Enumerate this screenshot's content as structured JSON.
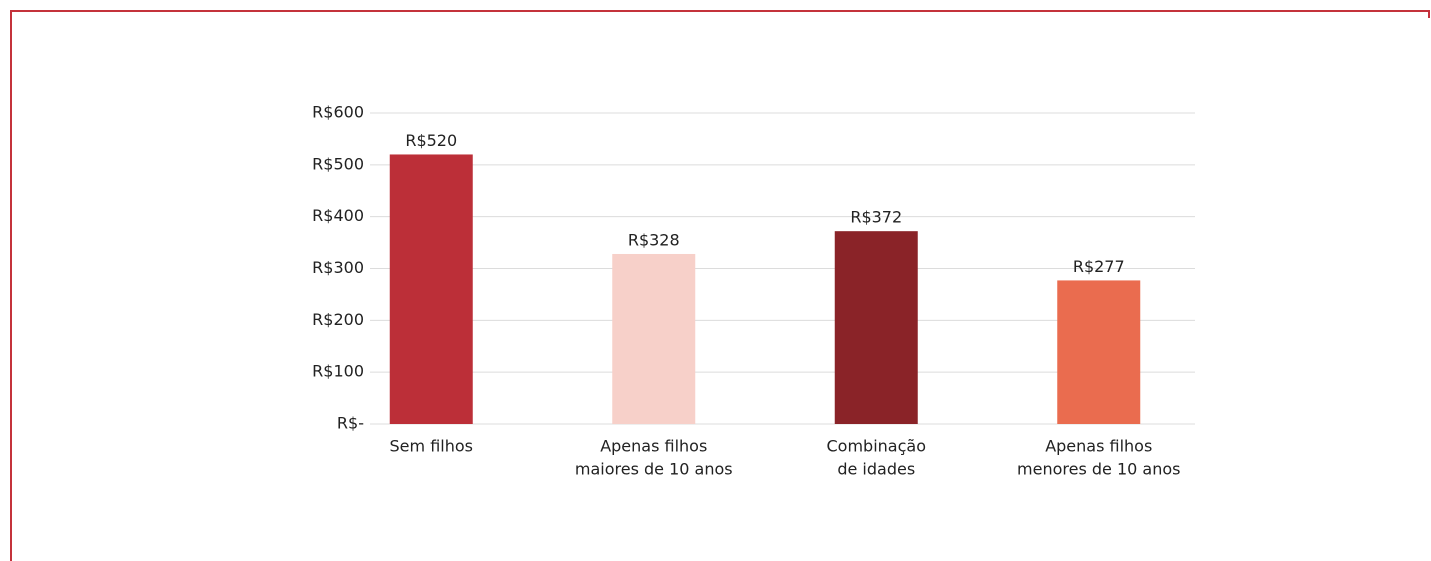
{
  "chart_data": {
    "type": "bar",
    "categories": [
      [
        "Sem filhos"
      ],
      [
        "Apenas filhos",
        "maiores de 10 anos"
      ],
      [
        "Combinação",
        "de idades"
      ],
      [
        "Apenas filhos",
        "menores de 10 anos"
      ]
    ],
    "values": [
      520,
      328,
      372,
      277
    ],
    "value_labels": [
      "R$520",
      "R$328",
      "R$372",
      "R$277"
    ],
    "colors": [
      "#bc2f38",
      "#f7d0c9",
      "#8a2328",
      "#ea6c4f"
    ],
    "ylim": [
      0,
      600
    ],
    "yticks": [
      {
        "value": 0,
        "label": "R$-"
      },
      {
        "value": 100,
        "label": "R$100"
      },
      {
        "value": 200,
        "label": "R$200"
      },
      {
        "value": 300,
        "label": "R$300"
      },
      {
        "value": 400,
        "label": "R$400"
      },
      {
        "value": 500,
        "label": "R$500"
      },
      {
        "value": 600,
        "label": "R$600"
      }
    ],
    "grid": true
  }
}
